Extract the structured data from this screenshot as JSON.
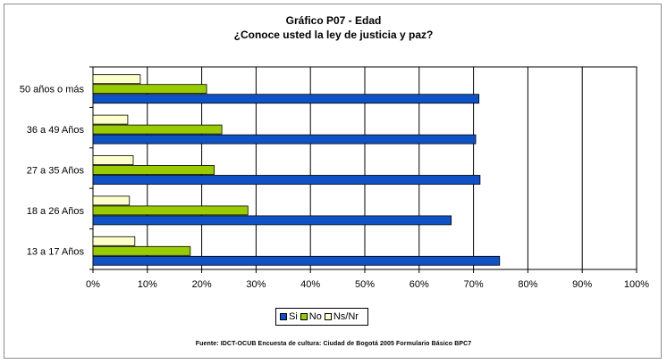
{
  "chart_data": {
    "type": "bar",
    "orientation": "horizontal",
    "title": "Gráfico P07 - Edad",
    "subtitle": "¿Conoce usted la ley de justicia y paz?",
    "categories": [
      "50 años o más",
      "36 a 49 Años",
      "27 a 35 Años",
      "18 a 26 Años",
      "13 a 17 Años"
    ],
    "series": [
      {
        "name": "Ns/Nr",
        "color": "#ffffcc",
        "values": [
          8.7,
          6.4,
          7.4,
          6.7,
          7.7
        ]
      },
      {
        "name": "No",
        "color": "#99cc00",
        "values": [
          20.9,
          23.7,
          22.3,
          28.5,
          17.9
        ]
      },
      {
        "name": "Si",
        "color": "#0f52c6",
        "values": [
          71.0,
          70.4,
          71.2,
          65.9,
          74.8
        ]
      }
    ],
    "x_ticks": [
      "0%",
      "10%",
      "20%",
      "30%",
      "40%",
      "50%",
      "60%",
      "70%",
      "80%",
      "90%",
      "100%"
    ],
    "xlim": [
      0,
      100
    ],
    "grid": true,
    "legend_position": "bottom",
    "legend_order": [
      "Si",
      "No",
      "Ns/Nr"
    ],
    "source": "Fuente: IDCT-OCUB Encuesta de cultura: Ciudad de Bogotá 2005 Formulario Básico  BPC7"
  }
}
